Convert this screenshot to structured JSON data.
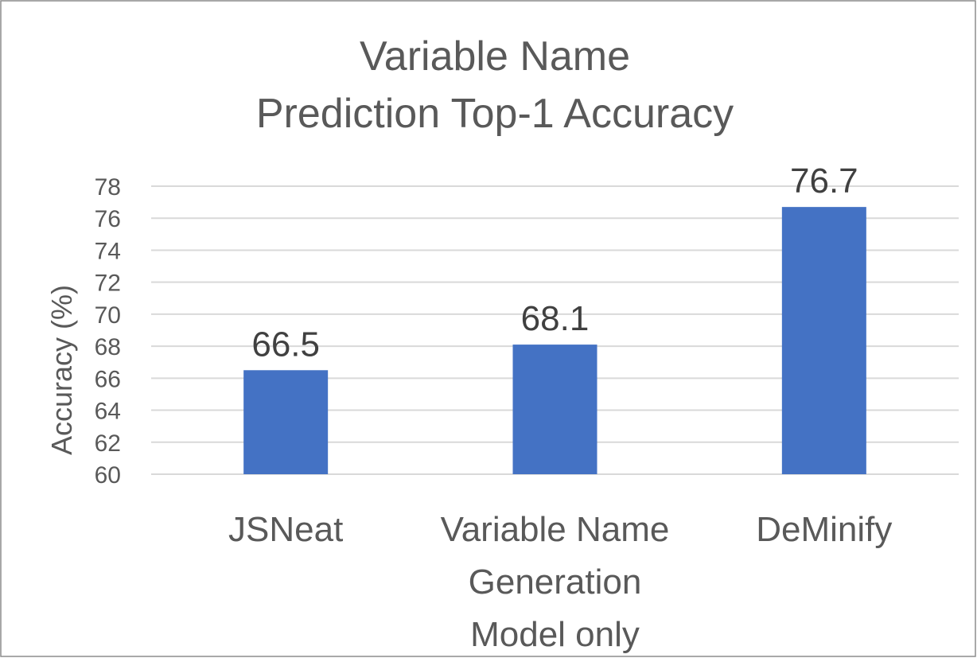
{
  "chart_data": {
    "type": "bar",
    "title": [
      "Variable Name",
      "Prediction Top-1 Accuracy"
    ],
    "xlabel": "",
    "ylabel": "Accuracy (%)",
    "ylim": [
      60,
      78
    ],
    "yticks": [
      60,
      62,
      64,
      66,
      68,
      70,
      72,
      74,
      76,
      78
    ],
    "categories": [
      [
        "JSNeat"
      ],
      [
        "Variable Name",
        "Generation",
        "Model only"
      ],
      [
        "DeMinify"
      ]
    ],
    "values": [
      66.5,
      68.1,
      76.7
    ],
    "data_labels": [
      "66.5",
      "68.1",
      "76.7"
    ],
    "grid": true,
    "legend": "none",
    "bar_color": "#4472c4"
  }
}
